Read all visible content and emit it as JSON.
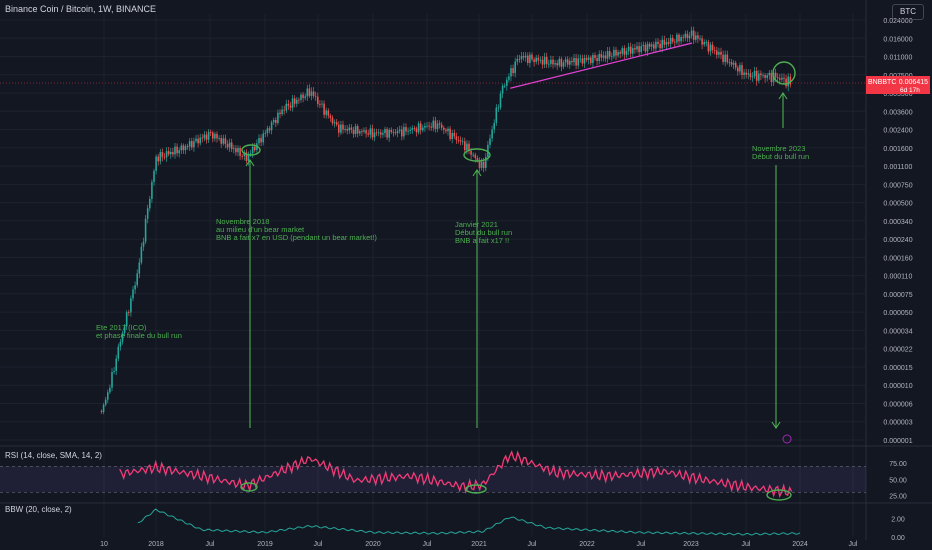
{
  "header": {
    "title": "Binance Coin / Bitcoin, 1W, BINANCE",
    "currency_button": "BTC"
  },
  "price_axis": {
    "ticks": [
      "0.024000",
      "0.016000",
      "0.011000",
      "0.007500",
      "0.005300",
      "0.003600",
      "0.002400",
      "0.001600",
      "0.001100",
      "0.000750",
      "0.000500",
      "0.000340",
      "0.000240",
      "0.000160",
      "0.000110",
      "0.000075",
      "0.000050",
      "0.000034",
      "0.000022",
      "0.000015",
      "0.000010",
      "0.000006",
      "0.000003",
      "0.000001"
    ],
    "last_label": "BNBBTC",
    "last_price": "0.006415",
    "countdown": "6d 17h"
  },
  "time_axis": {
    "ticks": [
      "10",
      "2018",
      "Jul",
      "2019",
      "Jul",
      "2020",
      "Jul",
      "2021",
      "Jul",
      "2022",
      "Jul",
      "2023",
      "Jul",
      "2024",
      "Jul"
    ]
  },
  "rsi": {
    "label": "RSI (14, close, SMA, 14, 2)",
    "ticks": [
      "75.00",
      "50.00",
      "25.00"
    ]
  },
  "bbw": {
    "label": "BBW (20, close, 2)",
    "ticks": [
      "2.00",
      "0.00"
    ]
  },
  "annotations": [
    {
      "lines": [
        "Ete 2017 (ICO)",
        "et phase finale du bull run"
      ]
    },
    {
      "lines": [
        "Novembre 2018",
        "au milieu d'un bear market",
        "BNB a fait x7 en USD (pendant un bear market!)"
      ]
    },
    {
      "lines": [
        "Janvier 2021",
        "Début du bull run",
        "BNB a fait x17 !!"
      ]
    },
    {
      "lines": [
        "Novembre 2023",
        "Début du bull run"
      ]
    }
  ],
  "colors": {
    "background": "#131722",
    "up": "#26a69a",
    "down": "#ef5350",
    "rsi_line": "#f23c78",
    "rsi_band": "#7e57c2",
    "bbw_line": "#26a69a",
    "trendline": "#e040d0",
    "annotation": "#4caf50",
    "price_label": "#f23645"
  },
  "chart_data": [
    {
      "type": "line",
      "title": "Binance Coin / Bitcoin, 1W, BINANCE",
      "scale": "log",
      "x": [
        "2017-07",
        "2017-09",
        "2017-11",
        "2018-01",
        "2018-04",
        "2018-07",
        "2018-11",
        "2019-03",
        "2019-06",
        "2019-09",
        "2020-01",
        "2020-04",
        "2020-08",
        "2020-11",
        "2021-01",
        "2021-03",
        "2021-05",
        "2021-09",
        "2022-01",
        "2022-05",
        "2022-09",
        "2022-12",
        "2023-03",
        "2023-06",
        "2023-09",
        "2023-11"
      ],
      "series": [
        {
          "values": [
            4.5e-06,
            2.5e-05,
            0.00012,
            0.0013,
            0.0016,
            0.0022,
            0.0013,
            0.0038,
            0.0055,
            0.0025,
            0.0022,
            0.0023,
            0.0027,
            0.0017,
            0.00105,
            0.0055,
            0.011,
            0.0095,
            0.0105,
            0.0125,
            0.0145,
            0.0175,
            0.0115,
            0.0075,
            0.0073,
            0.0064
          ]
        }
      ],
      "ylim": [
        1e-06,
        0.024
      ],
      "grid": true
    },
    {
      "type": "line",
      "title": "RSI (14, close, SMA, 14, 2)",
      "x": [
        "2017-09",
        "2018-01",
        "2018-06",
        "2018-11",
        "2019-06",
        "2019-11",
        "2020-05",
        "2020-11",
        "2021-01",
        "2021-04",
        "2021-09",
        "2022-03",
        "2022-09",
        "2023-01",
        "2023-06",
        "2023-11"
      ],
      "series": [
        {
          "values": [
            58,
            68,
            55,
            40,
            82,
            48,
            55,
            38,
            42,
            88,
            60,
            55,
            62,
            50,
            38,
            30
          ]
        }
      ],
      "bands": [
        30,
        70
      ],
      "ylim": [
        15,
        95
      ]
    },
    {
      "type": "line",
      "title": "BBW (20, close, 2)",
      "x": [
        "2017-11",
        "2018-01",
        "2018-06",
        "2019-01",
        "2019-06",
        "2020-01",
        "2020-08",
        "2021-01",
        "2021-04",
        "2021-08",
        "2022-06",
        "2023-06",
        "2023-12"
      ],
      "series": [
        {
          "values": [
            1.5,
            3.0,
            0.8,
            0.5,
            1.2,
            0.5,
            0.4,
            0.6,
            2.2,
            1.0,
            0.5,
            0.3,
            0.4
          ]
        }
      ],
      "ylim": [
        0,
        3.5
      ]
    }
  ]
}
